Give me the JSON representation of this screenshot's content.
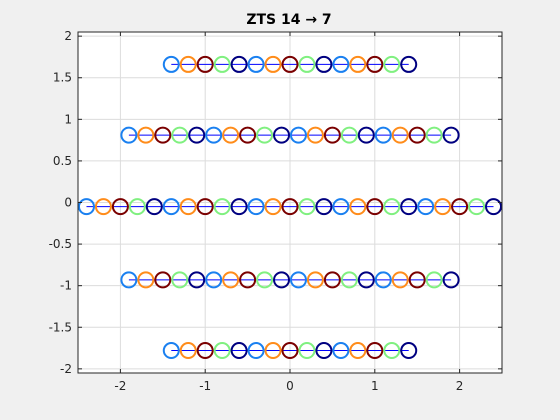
{
  "chart_data": {
    "type": "scatter",
    "title": "ZTS 14 → 7",
    "xlabel": "",
    "ylabel": "",
    "xlim": [
      -2.5,
      2.5
    ],
    "ylim": [
      -2.05,
      2.05
    ],
    "grid": true,
    "x_ticks": [
      -2,
      -1,
      0,
      1,
      2
    ],
    "x_tick_labels": [
      "-2",
      "-1",
      "0",
      "1",
      "2"
    ],
    "y_ticks": [
      -2,
      -1.5,
      -1,
      -0.5,
      0,
      0.5,
      1,
      1.5,
      2
    ],
    "y_tick_labels": [
      "-2",
      "-1.5",
      "-1",
      "-0.5",
      "0",
      "0.5",
      "1",
      "1.5",
      "2"
    ],
    "line_color": "#0000ff",
    "palette": [
      "#1a80f0",
      "#ff8c1a",
      "#7a0000",
      "#80f080",
      "#000080"
    ],
    "rows": [
      {
        "y": 1.66,
        "x": [
          -1.4,
          -1.2,
          -1.0,
          -0.8,
          -0.6,
          -0.4,
          -0.2,
          0.0,
          0.2,
          0.4,
          0.6,
          0.8,
          1.0,
          1.2,
          1.4
        ],
        "colors": [
          "#1a80f0",
          "#ff8c1a",
          "#7a0000",
          "#80f080",
          "#000080",
          "#1a80f0",
          "#ff8c1a",
          "#7a0000",
          "#80f080",
          "#000080",
          "#1a80f0",
          "#ff8c1a",
          "#7a0000",
          "#80f080",
          "#000080"
        ]
      },
      {
        "y": 0.81,
        "x": [
          -1.9,
          -1.7,
          -1.5,
          -1.3,
          -1.1,
          -0.9,
          -0.7,
          -0.5,
          -0.3,
          -0.1,
          0.1,
          0.3,
          0.5,
          0.7,
          0.9,
          1.1,
          1.3,
          1.5,
          1.7,
          1.9
        ],
        "colors": [
          "#1a80f0",
          "#ff8c1a",
          "#7a0000",
          "#80f080",
          "#000080",
          "#1a80f0",
          "#ff8c1a",
          "#7a0000",
          "#80f080",
          "#000080",
          "#1a80f0",
          "#ff8c1a",
          "#7a0000",
          "#80f080",
          "#000080",
          "#1a80f0",
          "#ff8c1a",
          "#7a0000",
          "#80f080",
          "#000080"
        ]
      },
      {
        "y": -0.05,
        "x": [
          -2.4,
          -2.2,
          -2.0,
          -1.8,
          -1.6,
          -1.4,
          -1.2,
          -1.0,
          -0.8,
          -0.6,
          -0.4,
          -0.2,
          0.0,
          0.2,
          0.4,
          0.6,
          0.8,
          1.0,
          1.2,
          1.4,
          1.6,
          1.8,
          2.0,
          2.2,
          2.4
        ],
        "colors": [
          "#1a80f0",
          "#ff8c1a",
          "#7a0000",
          "#80f080",
          "#000080",
          "#1a80f0",
          "#ff8c1a",
          "#7a0000",
          "#80f080",
          "#000080",
          "#1a80f0",
          "#ff8c1a",
          "#7a0000",
          "#80f080",
          "#000080",
          "#1a80f0",
          "#ff8c1a",
          "#7a0000",
          "#80f080",
          "#000080",
          "#1a80f0",
          "#ff8c1a",
          "#7a0000",
          "#80f080",
          "#000080"
        ]
      },
      {
        "y": -0.93,
        "x": [
          -1.9,
          -1.7,
          -1.5,
          -1.3,
          -1.1,
          -0.9,
          -0.7,
          -0.5,
          -0.3,
          -0.1,
          0.1,
          0.3,
          0.5,
          0.7,
          0.9,
          1.1,
          1.3,
          1.5,
          1.7,
          1.9
        ],
        "colors": [
          "#1a80f0",
          "#ff8c1a",
          "#7a0000",
          "#80f080",
          "#000080",
          "#1a80f0",
          "#ff8c1a",
          "#7a0000",
          "#80f080",
          "#000080",
          "#1a80f0",
          "#ff8c1a",
          "#7a0000",
          "#80f080",
          "#000080",
          "#1a80f0",
          "#ff8c1a",
          "#7a0000",
          "#80f080",
          "#000080"
        ]
      },
      {
        "y": -1.78,
        "x": [
          -1.4,
          -1.2,
          -1.0,
          -0.8,
          -0.6,
          -0.4,
          -0.2,
          0.0,
          0.2,
          0.4,
          0.6,
          0.8,
          1.0,
          1.2,
          1.4
        ],
        "colors": [
          "#1a80f0",
          "#ff8c1a",
          "#7a0000",
          "#80f080",
          "#000080",
          "#1a80f0",
          "#ff8c1a",
          "#7a0000",
          "#80f080",
          "#000080",
          "#1a80f0",
          "#ff8c1a",
          "#7a0000",
          "#80f080",
          "#000080"
        ]
      }
    ]
  }
}
